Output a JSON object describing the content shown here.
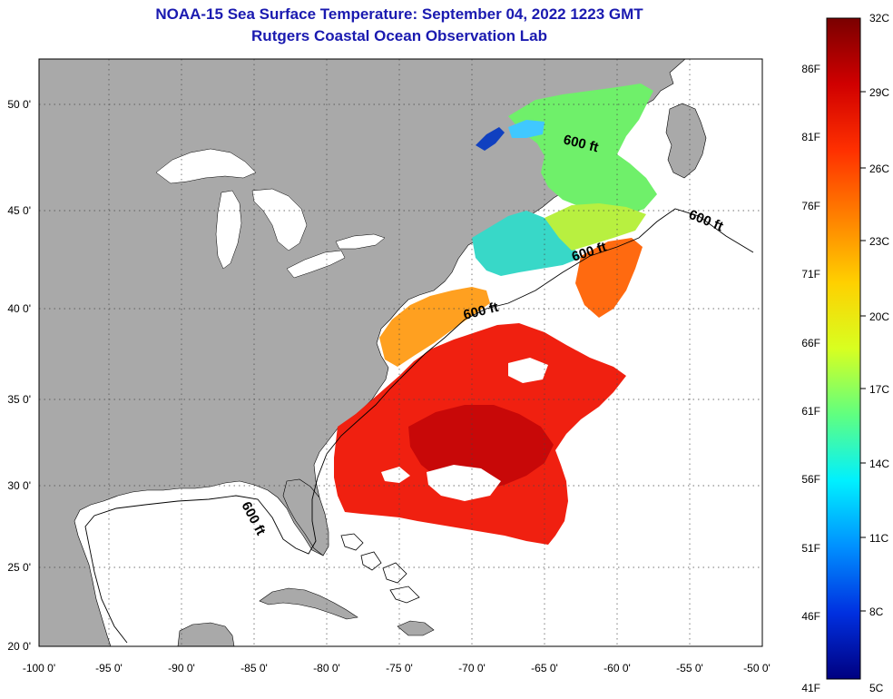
{
  "title": "NOAA-15 Sea Surface Temperature:  September 04, 2022 1223 GMT",
  "subtitle": "Rutgers Coastal Ocean Observation Lab",
  "lat_ticks": [
    "50 0'",
    "45 0'",
    "40 0'",
    "35 0'",
    "30 0'",
    "25 0'",
    "20 0'"
  ],
  "lon_ticks": [
    "-100 0'",
    "-95 0'",
    "-90 0'",
    "-85 0'",
    "-80 0'",
    "-75 0'",
    "-70 0'",
    "-65 0'",
    "-60 0'",
    "-55 0'",
    "-50 0'"
  ],
  "contour_labels": [
    "600 ft",
    "600 ft",
    "600 ft",
    "600 ft",
    "600 ft"
  ],
  "colorbar": {
    "celsius": [
      "32C",
      "29C",
      "26C",
      "23C",
      "20C",
      "17C",
      "14C",
      "11C",
      "8C",
      "5C"
    ],
    "fahrenheit": [
      "86F",
      "81F",
      "76F",
      "71F",
      "66F",
      "61F",
      "56F",
      "51F",
      "46F",
      "41F"
    ],
    "colors": [
      "#7a0000",
      "#d00000",
      "#ff3000",
      "#ff8000",
      "#ffd000",
      "#d8ff20",
      "#60ff80",
      "#00f0ff",
      "#0090ff",
      "#0030e0",
      "#000080"
    ]
  },
  "colors": {
    "land": "#a9a9a9",
    "title": "#1a1ab0"
  }
}
